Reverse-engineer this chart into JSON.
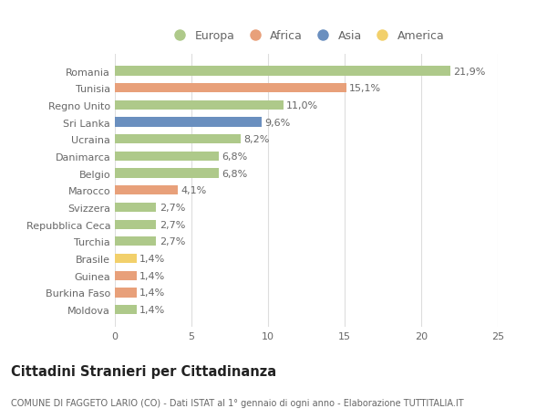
{
  "categories": [
    "Moldova",
    "Burkina Faso",
    "Guinea",
    "Brasile",
    "Turchia",
    "Repubblica Ceca",
    "Svizzera",
    "Marocco",
    "Belgio",
    "Danimarca",
    "Ucraina",
    "Sri Lanka",
    "Regno Unito",
    "Tunisia",
    "Romania"
  ],
  "values": [
    1.4,
    1.4,
    1.4,
    1.4,
    2.7,
    2.7,
    2.7,
    4.1,
    6.8,
    6.8,
    8.2,
    9.6,
    11.0,
    15.1,
    21.9
  ],
  "labels": [
    "1,4%",
    "1,4%",
    "1,4%",
    "1,4%",
    "2,7%",
    "2,7%",
    "2,7%",
    "4,1%",
    "6,8%",
    "6,8%",
    "8,2%",
    "9,6%",
    "11,0%",
    "15,1%",
    "21,9%"
  ],
  "colors": [
    "#aec98a",
    "#e8a07a",
    "#e8a07a",
    "#f2d06b",
    "#aec98a",
    "#aec98a",
    "#aec98a",
    "#e8a07a",
    "#aec98a",
    "#aec98a",
    "#aec98a",
    "#6a8fbf",
    "#aec98a",
    "#e8a07a",
    "#aec98a"
  ],
  "legend": [
    {
      "label": "Europa",
      "color": "#aec98a"
    },
    {
      "label": "Africa",
      "color": "#e8a07a"
    },
    {
      "label": "Asia",
      "color": "#6a8fbf"
    },
    {
      "label": "America",
      "color": "#f2d06b"
    }
  ],
  "xlim": [
    0,
    25
  ],
  "xticks": [
    0,
    5,
    10,
    15,
    20,
    25
  ],
  "title": "Cittadini Stranieri per Cittadinanza",
  "subtitle": "COMUNE DI FAGGETO LARIO (CO) - Dati ISTAT al 1° gennaio di ogni anno - Elaborazione TUTTITALIA.IT",
  "bg_color": "#ffffff",
  "grid_color": "#dddddd",
  "bar_height": 0.55,
  "label_fontsize": 8,
  "tick_fontsize": 8,
  "title_fontsize": 10.5,
  "subtitle_fontsize": 7
}
